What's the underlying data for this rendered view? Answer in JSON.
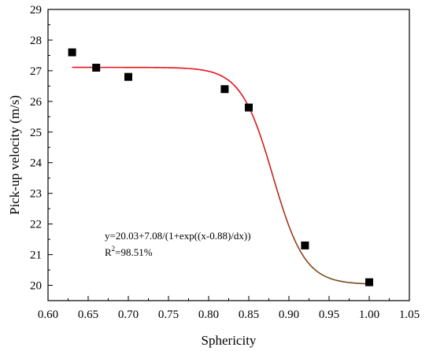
{
  "chart_data": {
    "type": "scatter",
    "xlabel": "Sphericity",
    "ylabel": "Pick-up velocity (m/s)",
    "xlim": [
      0.6,
      1.05
    ],
    "ylim": [
      19.5,
      29
    ],
    "x_ticks": [
      "0.60",
      "0.65",
      "0.70",
      "0.75",
      "0.80",
      "0.85",
      "0.90",
      "0.95",
      "1.00",
      "1.05"
    ],
    "y_ticks": [
      "20",
      "21",
      "22",
      "23",
      "24",
      "25",
      "26",
      "27",
      "28",
      "29"
    ],
    "points": [
      {
        "x": 0.63,
        "y": 27.6
      },
      {
        "x": 0.66,
        "y": 27.1
      },
      {
        "x": 0.7,
        "y": 26.8
      },
      {
        "x": 0.82,
        "y": 26.4
      },
      {
        "x": 0.85,
        "y": 25.8
      },
      {
        "x": 0.92,
        "y": 21.3
      },
      {
        "x": 1.0,
        "y": 20.1
      }
    ],
    "fit": {
      "model": "boltzmann",
      "A1": 27.11,
      "A2": 20.03,
      "x0": 0.88,
      "dx": 0.02,
      "x_range": [
        0.63,
        1.0
      ],
      "color_start": "#e8141e",
      "color_end": "#7a4a1e"
    },
    "marker_color": "#000000",
    "annotations": {
      "equation": "y=20.03+7.08/(1+exp((x-0.88)/dx))",
      "r2_base": "R",
      "r2_sup": "2",
      "r2_value": "=98.51%"
    }
  }
}
